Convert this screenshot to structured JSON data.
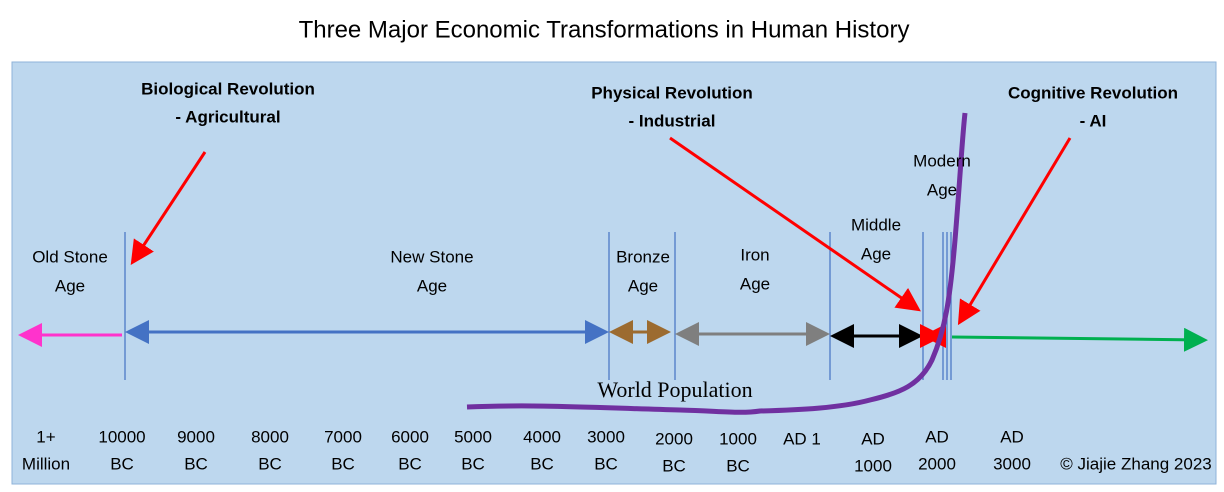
{
  "title": "Three Major Economic Transformations in Human History",
  "revolutions": [
    {
      "lines": [
        "Biological Revolution",
        "- Agricultural"
      ]
    },
    {
      "lines": [
        "Physical Revolution",
        "- Industrial"
      ]
    },
    {
      "lines": [
        "Cognitive Revolution",
        "- AI"
      ]
    }
  ],
  "eras": [
    {
      "lines": [
        "Old Stone",
        "Age"
      ]
    },
    {
      "lines": [
        "New Stone",
        "Age"
      ]
    },
    {
      "lines": [
        "Bronze",
        "Age"
      ]
    },
    {
      "lines": [
        "Iron",
        "Age"
      ]
    },
    {
      "lines": [
        "Middle",
        "Age"
      ]
    },
    {
      "lines": [
        "Modern",
        "Age"
      ]
    }
  ],
  "population_label": "World Population",
  "timeline": [
    {
      "lines": [
        "1+",
        "Million"
      ]
    },
    {
      "lines": [
        "10000",
        "BC"
      ]
    },
    {
      "lines": [
        "9000",
        "BC"
      ]
    },
    {
      "lines": [
        "8000",
        "BC"
      ]
    },
    {
      "lines": [
        "7000",
        "BC"
      ]
    },
    {
      "lines": [
        "6000",
        "BC"
      ]
    },
    {
      "lines": [
        "5000",
        "BC"
      ]
    },
    {
      "lines": [
        "4000",
        "BC"
      ]
    },
    {
      "lines": [
        "3000",
        "BC"
      ]
    },
    {
      "lines": [
        "2000",
        "BC"
      ]
    },
    {
      "lines": [
        "1000",
        "BC"
      ]
    },
    {
      "lines": [
        "AD 1"
      ]
    },
    {
      "lines": [
        "AD",
        "1000"
      ]
    },
    {
      "lines": [
        "AD",
        "2000"
      ]
    },
    {
      "lines": [
        "AD",
        "3000"
      ]
    }
  ],
  "copyright": "© Jiajie Zhang 2023"
}
